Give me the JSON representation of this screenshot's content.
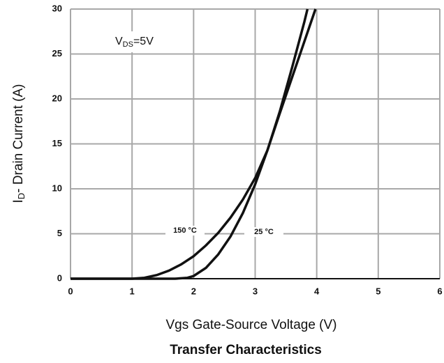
{
  "chart_data": {
    "type": "line",
    "title": "Transfer Characteristics",
    "xlabel": "Vgs Gate-Source Voltage (V)",
    "ylabel": {
      "main": "I",
      "sub": "D",
      "rest": "- Drain Current (A)"
    },
    "annotation": {
      "main": "V",
      "sub": "DS",
      "rest": "=5V"
    },
    "xlim": [
      0,
      6
    ],
    "xticks": [
      0,
      1,
      2,
      3,
      4,
      5,
      6
    ],
    "ylim": [
      0,
      30
    ],
    "yticks": [
      0,
      5,
      10,
      15,
      20,
      25,
      30
    ],
    "grid": true,
    "series": [
      {
        "name": "150 °C",
        "color": "#111111",
        "x": [
          0,
          1,
          1.2,
          1.4,
          1.6,
          1.8,
          2,
          2.2,
          2.4,
          2.6,
          2.8,
          3,
          3.2,
          3.4,
          3.6,
          3.8,
          3.98
        ],
        "values": [
          0,
          0,
          0.1,
          0.4,
          0.9,
          1.6,
          2.5,
          3.7,
          5.1,
          6.8,
          8.8,
          11.2,
          14.3,
          18.4,
          22.4,
          26.4,
          30
        ]
      },
      {
        "name": "25 °C",
        "color": "#111111",
        "x": [
          0,
          1.7,
          1.9,
          2,
          2.2,
          2.4,
          2.6,
          2.8,
          3,
          3.2,
          3.4,
          3.6,
          3.8,
          3.85
        ],
        "values": [
          0,
          0,
          0.1,
          0.3,
          1.2,
          2.7,
          4.7,
          7.3,
          10.5,
          14.3,
          18.6,
          23.5,
          28.6,
          30
        ]
      }
    ]
  }
}
